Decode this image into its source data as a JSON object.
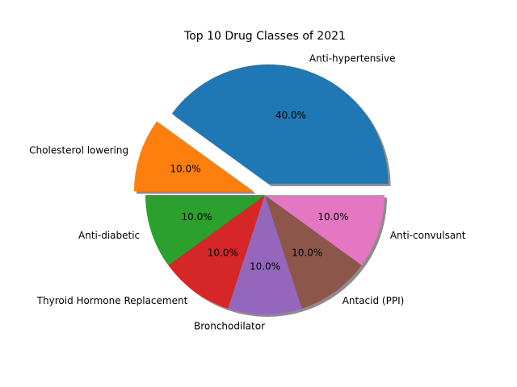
{
  "chart_data": {
    "type": "pie",
    "title": "Top 10 Drug Classes of 2021",
    "categories": [
      "Anti-hypertensive",
      "Cholesterol lowering",
      "Anti-diabetic",
      "Thyroid Hormone Replacement",
      "Bronchodilator",
      "Antacid (PPI)",
      "Anti-convulsant"
    ],
    "values": [
      40.0,
      10.0,
      10.0,
      10.0,
      10.0,
      10.0,
      10.0
    ],
    "percent_labels": [
      "40.0%",
      "10.0%",
      "10.0%",
      "10.0%",
      "10.0%",
      "10.0%",
      "10.0%"
    ],
    "colors": [
      "#1f77b4",
      "#ff7f0e",
      "#2ca02c",
      "#d62728",
      "#9467bd",
      "#8c564b",
      "#e377c2"
    ],
    "exploded": [
      true,
      true,
      false,
      false,
      false,
      false,
      false
    ],
    "shadow": true,
    "start_angle_deg": 0,
    "direction": "counterclockwise"
  }
}
